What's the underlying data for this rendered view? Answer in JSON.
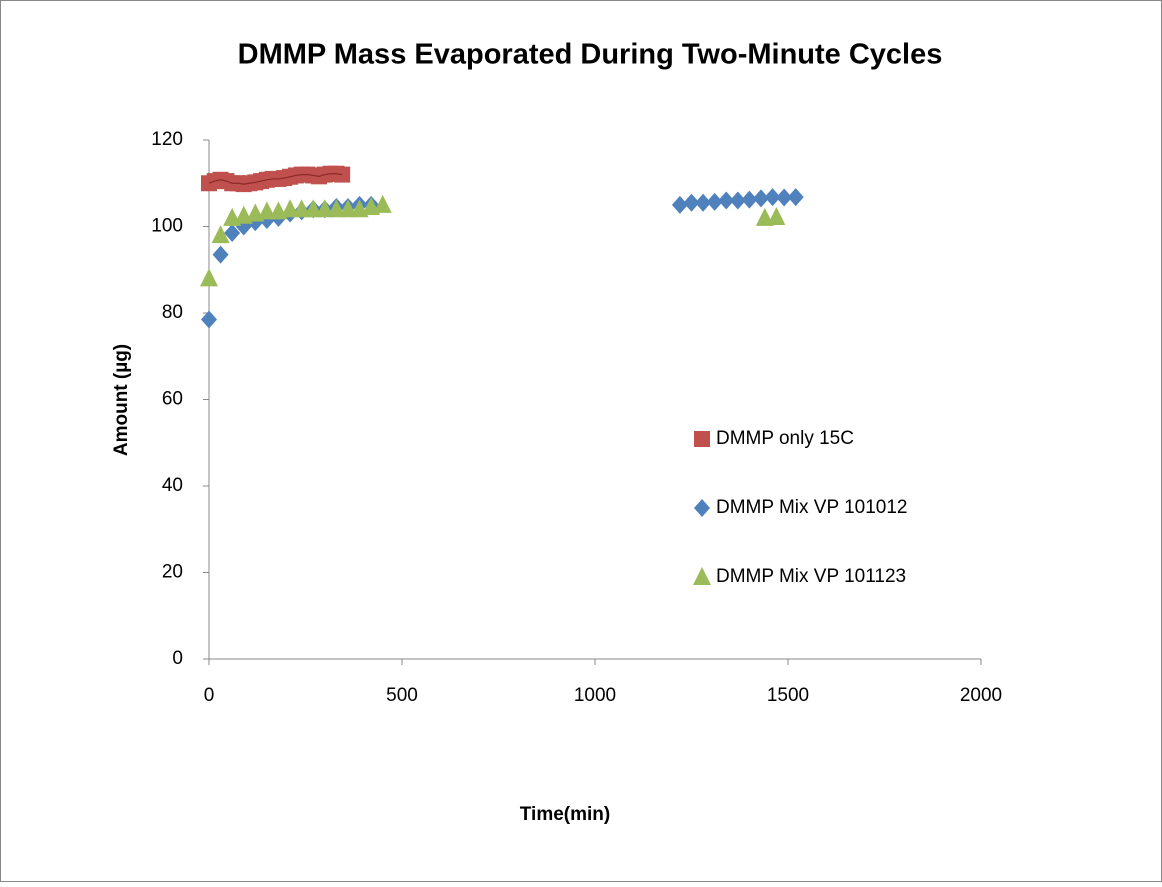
{
  "chart_data": {
    "type": "scatter",
    "title": "DMMP Mass Evaporated During Two-Minute Cycles",
    "x_label": "Time(min)",
    "y_label": "Amount (µg)",
    "xlim": [
      0,
      2000
    ],
    "xticks": [
      0,
      500,
      1000,
      1500,
      2000
    ],
    "ylim": [
      0,
      120
    ],
    "yticks": [
      0,
      20,
      40,
      60,
      80,
      100,
      120
    ],
    "legend": "right",
    "series": [
      {
        "name": "DMMP only 15C",
        "color": "#c0504d",
        "marker": "square",
        "line": true,
        "line_color": "#8b2a28",
        "x": [
          0,
          15,
          30,
          45,
          60,
          75,
          90,
          105,
          120,
          135,
          150,
          165,
          180,
          195,
          210,
          225,
          240,
          255,
          270,
          285,
          300,
          315,
          330,
          345
        ],
        "values": [
          110,
          110.5,
          110.8,
          110.5,
          110,
          110,
          109.8,
          110,
          110.2,
          110.5,
          110.8,
          111,
          111,
          111.2,
          111.5,
          111.8,
          112,
          112,
          111.8,
          111.6,
          112,
          112.2,
          112.2,
          112
        ]
      },
      {
        "name": "DMMP Mix VP 101012",
        "color": "#4f81bd",
        "marker": "diamond",
        "line": false,
        "x": [
          0,
          30,
          60,
          90,
          120,
          150,
          180,
          210,
          240,
          270,
          300,
          330,
          360,
          390,
          420,
          1220,
          1250,
          1280,
          1310,
          1340,
          1370,
          1400,
          1430,
          1460,
          1490,
          1520
        ],
        "values": [
          78.5,
          93.5,
          98.5,
          100,
          101,
          101.5,
          102,
          103,
          103.5,
          104,
          104,
          104.5,
          104.5,
          105,
          105,
          105,
          105.5,
          105.5,
          105.7,
          106,
          106,
          106.2,
          106.5,
          106.8,
          106.7,
          106.8
        ]
      },
      {
        "name": "DMMP Mix VP 101123",
        "color": "#9bbb59",
        "marker": "triangle",
        "line": false,
        "x": [
          0,
          30,
          60,
          90,
          120,
          150,
          180,
          210,
          240,
          270,
          300,
          330,
          360,
          390,
          420,
          450,
          1440,
          1470
        ],
        "values": [
          88,
          98,
          102,
          102.5,
          103,
          103.5,
          103.5,
          104,
          104,
          104,
          104,
          104,
          104,
          104,
          104.5,
          105,
          102,
          102.2
        ]
      }
    ]
  }
}
